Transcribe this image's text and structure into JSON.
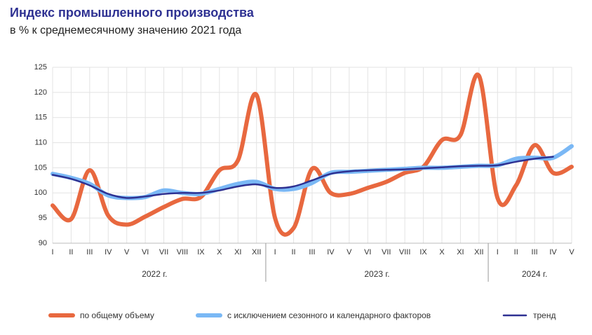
{
  "chart_data": {
    "type": "line",
    "title": "Индекс промышленного производства",
    "subtitle": "в % к среднемесячному значению 2021 года",
    "categories": [
      "I",
      "II",
      "III",
      "IV",
      "V",
      "VI",
      "VII",
      "VIII",
      "IX",
      "X",
      "XI",
      "XII",
      "I",
      "II",
      "III",
      "IV",
      "V",
      "VI",
      "VII",
      "VIII",
      "IX",
      "X",
      "XI",
      "XII",
      "I",
      "II",
      "III",
      "IV",
      "V"
    ],
    "groups": [
      "2022 г.",
      "2023 г.",
      "2024 г."
    ],
    "series": [
      {
        "name": "по общему объему",
        "color": "#e8683f",
        "width": 6,
        "values": [
          97.5,
          94.8,
          104.5,
          95.5,
          93.7,
          95.3,
          97.2,
          98.8,
          99.2,
          104.5,
          106.5,
          119.5,
          95,
          93,
          104.8,
          100,
          99.8,
          101,
          102.2,
          104,
          105.2,
          110.5,
          111.5,
          123.3,
          99,
          101.5,
          109.5,
          104,
          105.2
        ]
      },
      {
        "name": "с исключением сезонного и календарного факторов",
        "color": "#7ab8f5",
        "width": 6,
        "values": [
          103.8,
          103,
          101.8,
          99.5,
          99,
          99.2,
          100.5,
          100,
          99.8,
          100.8,
          101.8,
          102.2,
          100.8,
          100.8,
          102,
          104,
          104.2,
          104.4,
          104.6,
          104.8,
          105,
          105,
          105.2,
          105.4,
          105.5,
          106.8,
          107,
          107,
          109.3
        ]
      },
      {
        "name": "тренд",
        "color": "#2e3192",
        "width": 2.5,
        "values": [
          103.6,
          102.8,
          101.5,
          99.8,
          99,
          99.3,
          99.8,
          100,
          100,
          100.5,
          101.3,
          101.7,
          101,
          101.3,
          102.5,
          103.8,
          104.3,
          104.5,
          104.6,
          104.7,
          104.9,
          105.1,
          105.3,
          105.4,
          105.5,
          106.2,
          106.8,
          107.2,
          null
        ]
      }
    ],
    "ylim": [
      90,
      125
    ],
    "yticks": [
      90,
      95,
      100,
      105,
      110,
      115,
      120,
      125
    ],
    "grid": true
  }
}
